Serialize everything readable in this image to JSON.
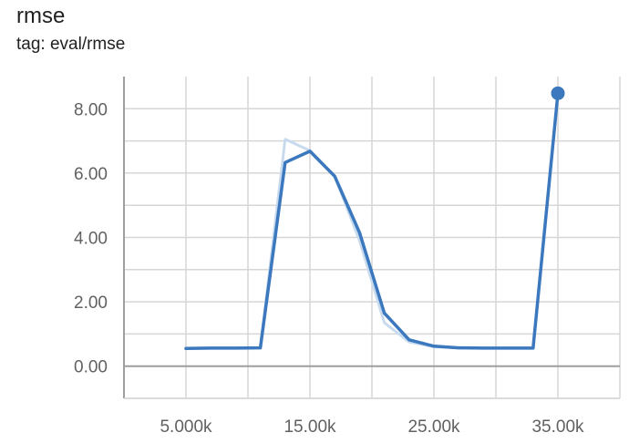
{
  "header": {
    "title": "rmse",
    "subtitle": "tag: eval/rmse"
  },
  "chart_data": {
    "type": "line",
    "title": "rmse",
    "subtitle": "tag: eval/rmse",
    "xlabel": "",
    "ylabel": "",
    "xlim": [
      0,
      40000
    ],
    "ylim": [
      -1,
      9
    ],
    "x_ticks": [
      5000,
      15000,
      25000,
      35000
    ],
    "x_tick_labels": [
      "5.000k",
      "15.00k",
      "25.00k",
      "35.00k"
    ],
    "y_ticks": [
      0,
      2,
      4,
      6,
      8
    ],
    "y_tick_labels": [
      "0.00",
      "2.00",
      "4.00",
      "6.00",
      "8.00"
    ],
    "grid": true,
    "colors": {
      "smoothed": "#3b78be",
      "raw": "#c8dbee",
      "axis": "#9e9e9e",
      "grid": "#d6d6d6"
    },
    "series": [
      {
        "role": "raw",
        "x": [
          5000,
          7000,
          9000,
          11000,
          13000,
          15000,
          17000,
          19000,
          21000,
          23000,
          25000,
          27000,
          29000,
          31000,
          33000,
          35000
        ],
        "values": [
          0.55,
          0.56,
          0.56,
          0.57,
          7.05,
          6.7,
          5.9,
          3.9,
          1.35,
          0.75,
          0.6,
          0.57,
          0.56,
          0.56,
          0.56,
          8.5
        ]
      },
      {
        "role": "smoothed",
        "x": [
          5000,
          7000,
          9000,
          11000,
          13000,
          15000,
          17000,
          19000,
          21000,
          23000,
          25000,
          27000,
          29000,
          31000,
          33000,
          35000
        ],
        "values": [
          0.55,
          0.56,
          0.56,
          0.57,
          6.33,
          6.68,
          5.9,
          4.15,
          1.65,
          0.82,
          0.62,
          0.57,
          0.56,
          0.56,
          0.56,
          8.48
        ]
      }
    ],
    "last_point": {
      "x": 35000,
      "y": 8.48
    }
  }
}
